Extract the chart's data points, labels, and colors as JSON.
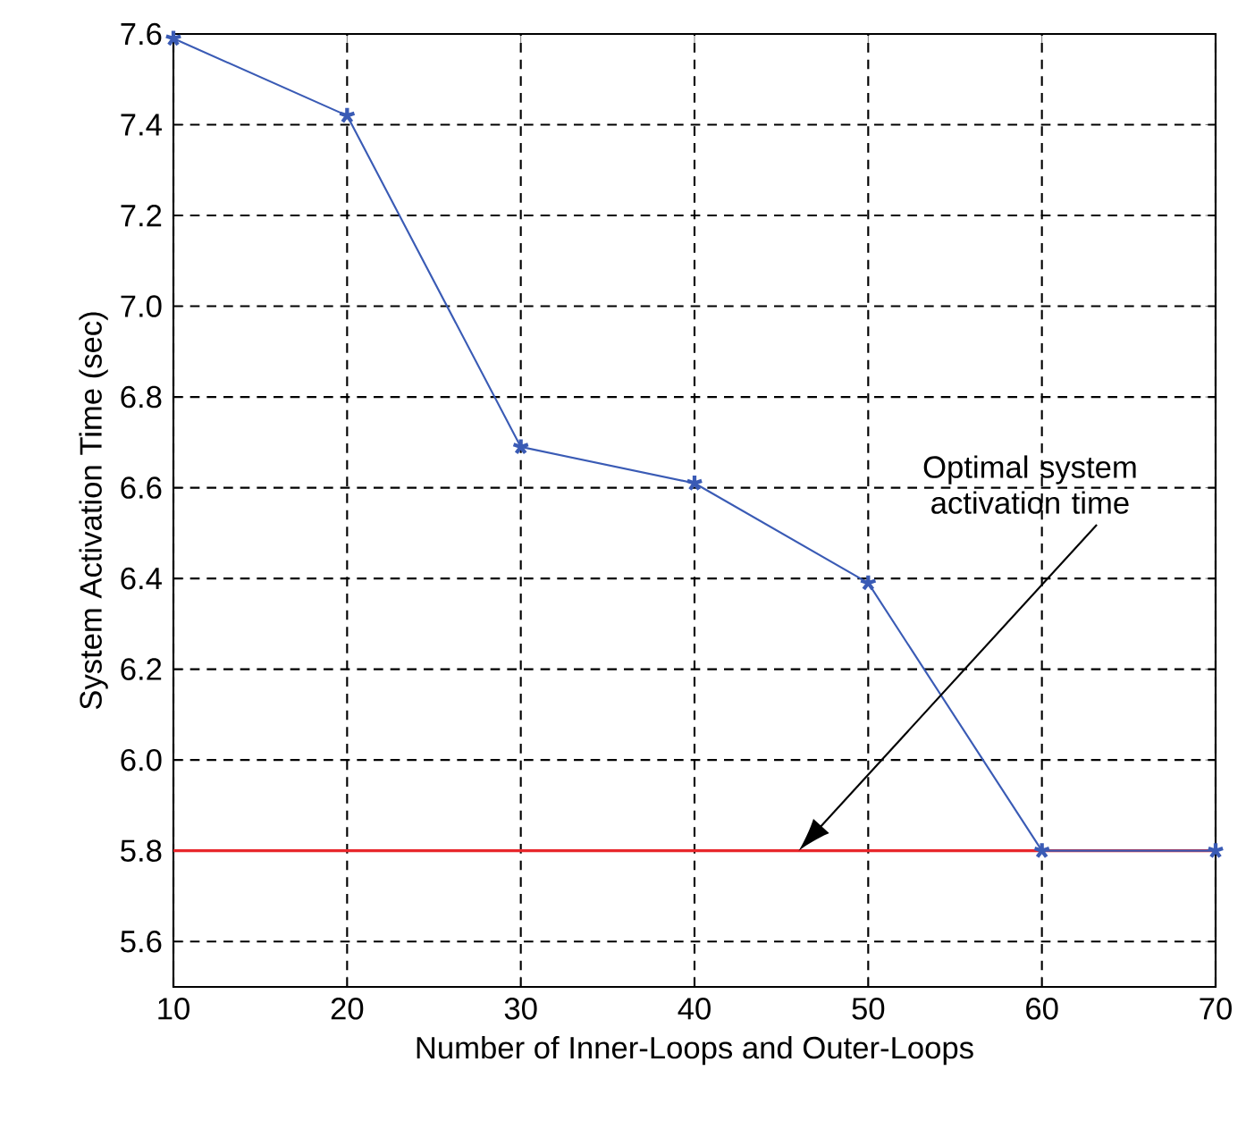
{
  "chart_data": {
    "type": "line",
    "xlabel": "Number of Inner-Loops and Outer-Loops",
    "ylabel": "System Activation Time (sec)",
    "x": [
      10,
      20,
      30,
      40,
      50,
      60,
      70
    ],
    "series": [
      {
        "color": "#3a5bb5",
        "values": [
          7.59,
          7.42,
          6.69,
          6.61,
          6.39,
          5.8,
          5.8
        ]
      }
    ],
    "xlim": [
      10,
      70
    ],
    "xticks": [
      10,
      20,
      30,
      40,
      50,
      60,
      70
    ],
    "ylim": [
      5.5,
      7.6
    ],
    "yticks": [
      5.6,
      5.8,
      {
        "value": 6,
        "label": "6.0"
      },
      6.2,
      6.4,
      6.6,
      6.8,
      {
        "value": 7,
        "label": "7.0"
      },
      7.2,
      7.4,
      7.6
    ],
    "grid": true,
    "marker": "cross",
    "line_style": "solid",
    "ref_lines": [
      {
        "axis": "y",
        "value": 5.8,
        "color": "#e8262b"
      }
    ],
    "annotations": [
      "Optimal system activation time"
    ]
  }
}
